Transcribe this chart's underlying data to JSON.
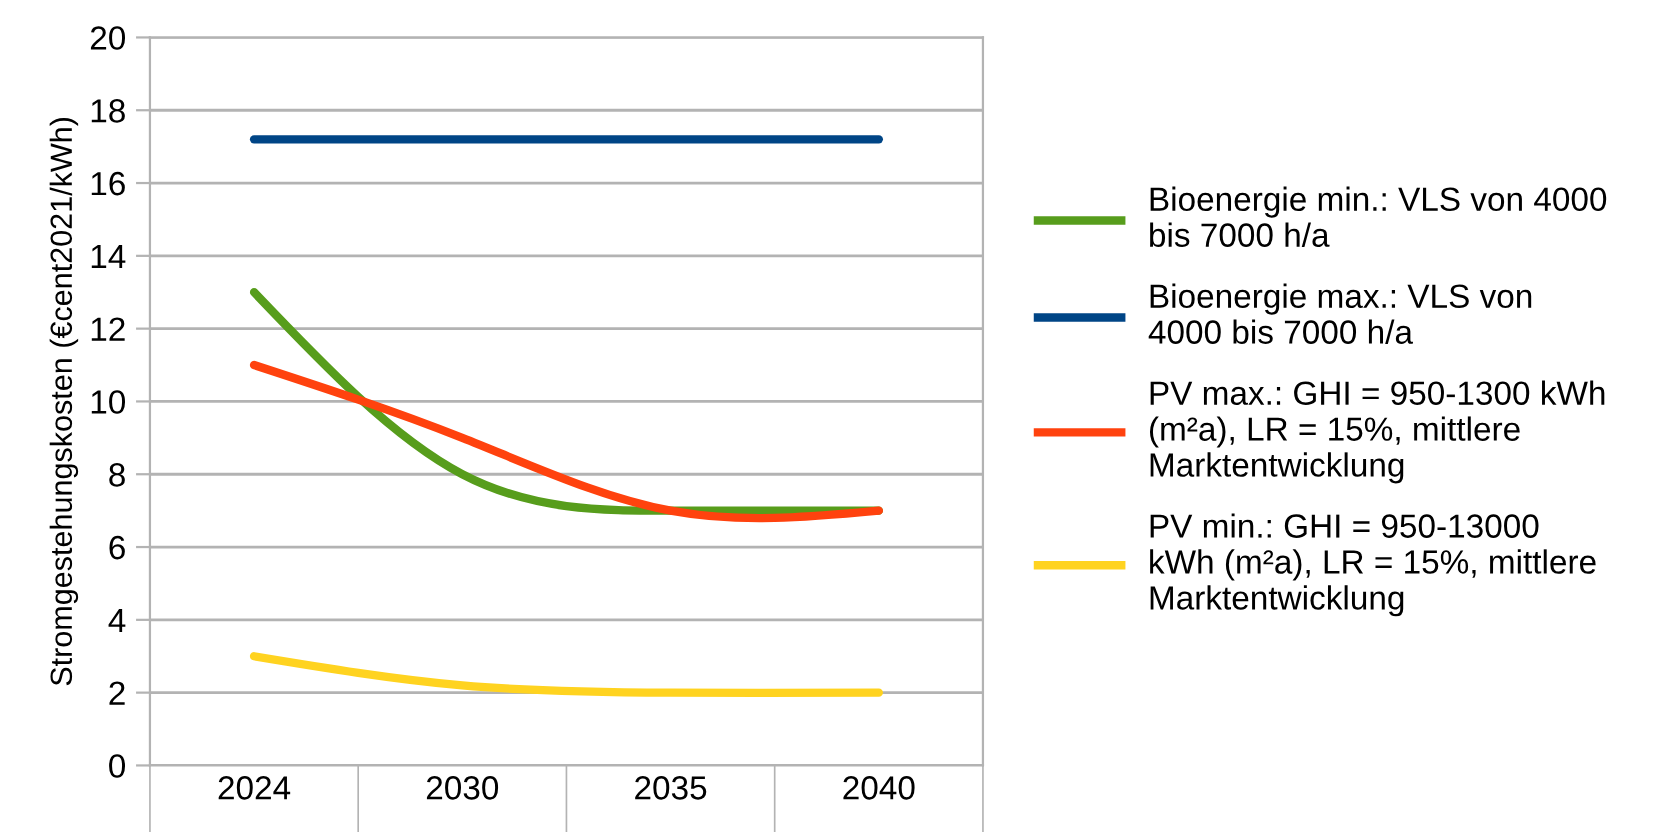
{
  "chart_data": {
    "type": "line",
    "ylabel": "Stromgestehungskosten (€cent2021/kWh)",
    "categories": [
      "2024",
      "2030",
      "2035",
      "2040"
    ],
    "series": [
      {
        "name": "Bioenergie min.: VLS von 4000\nbis 7000 h/a",
        "color": "#579d1c",
        "values": [
          13,
          8,
          7,
          7
        ]
      },
      {
        "name": "Bioenergie max.: VLS von\n4000 bis 7000 h/a",
        "color": "#004586",
        "values": [
          17.2,
          17.2,
          17.2,
          17.2
        ]
      },
      {
        "name": "PV max.: GHI = 950-1300 kWh\n(m²a), LR = 15%, mittlere\nMarktentwicklung",
        "color": "#ff420e",
        "values": [
          11,
          9,
          7,
          7
        ]
      },
      {
        "name": "PV min.: GHI = 950-13000\nkWh (m²a), LR = 15%, mittlere\nMarktentwicklung",
        "color": "#ffd320",
        "values": [
          3,
          2.2,
          2,
          2
        ]
      }
    ],
    "ylim": [
      0,
      20
    ],
    "yticks": [
      0,
      2,
      4,
      6,
      8,
      10,
      12,
      14,
      16,
      18,
      20
    ],
    "grid": "y",
    "legend": "right",
    "marker": "none",
    "line_style": "solid"
  }
}
